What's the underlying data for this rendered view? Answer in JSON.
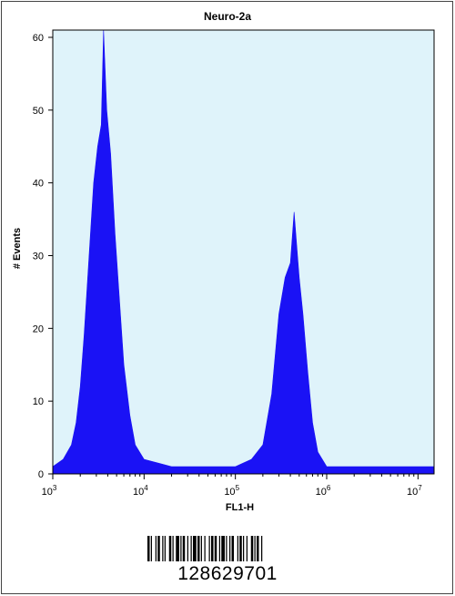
{
  "chart_data": {
    "type": "histogram",
    "title": "Neuro-2a",
    "xlabel": "FL1-H",
    "ylabel": "# Events",
    "x_scale": "log",
    "xlim": [
      1000,
      15000000
    ],
    "ylim": [
      0,
      61
    ],
    "x_ticks": [
      {
        "base": "10",
        "exp": "3",
        "value": 1000
      },
      {
        "base": "10",
        "exp": "4",
        "value": 10000
      },
      {
        "base": "10",
        "exp": "5",
        "value": 100000
      },
      {
        "base": "10",
        "exp": "6",
        "value": 1000000
      },
      {
        "base": "10",
        "exp": "7",
        "value": 10000000
      }
    ],
    "y_ticks": [
      "0",
      "10",
      "20",
      "30",
      "40",
      "50",
      "60"
    ],
    "fill_color": "#1a12f5",
    "background_color": "#dff3fa",
    "grid": false,
    "series": [
      {
        "points": [
          {
            "x": 1000,
            "y": 1
          },
          {
            "x": 1300,
            "y": 2
          },
          {
            "x": 1600,
            "y": 4
          },
          {
            "x": 1800,
            "y": 7
          },
          {
            "x": 2000,
            "y": 12
          },
          {
            "x": 2200,
            "y": 19
          },
          {
            "x": 2500,
            "y": 30
          },
          {
            "x": 2800,
            "y": 40
          },
          {
            "x": 3100,
            "y": 45
          },
          {
            "x": 3400,
            "y": 48
          },
          {
            "x": 3600,
            "y": 61
          },
          {
            "x": 3900,
            "y": 50
          },
          {
            "x": 4300,
            "y": 44
          },
          {
            "x": 4800,
            "y": 33
          },
          {
            "x": 5300,
            "y": 25
          },
          {
            "x": 6000,
            "y": 15
          },
          {
            "x": 7000,
            "y": 8
          },
          {
            "x": 8000,
            "y": 4
          },
          {
            "x": 10000,
            "y": 2
          },
          {
            "x": 20000,
            "y": 1
          },
          {
            "x": 50000,
            "y": 1
          },
          {
            "x": 100000,
            "y": 1
          },
          {
            "x": 150000,
            "y": 2
          },
          {
            "x": 200000,
            "y": 4
          },
          {
            "x": 250000,
            "y": 11
          },
          {
            "x": 300000,
            "y": 22
          },
          {
            "x": 350000,
            "y": 27
          },
          {
            "x": 400000,
            "y": 29
          },
          {
            "x": 440000,
            "y": 36
          },
          {
            "x": 500000,
            "y": 27
          },
          {
            "x": 550000,
            "y": 22
          },
          {
            "x": 620000,
            "y": 14
          },
          {
            "x": 700000,
            "y": 7
          },
          {
            "x": 800000,
            "y": 3
          },
          {
            "x": 1000000,
            "y": 1
          },
          {
            "x": 15000000,
            "y": 1
          }
        ]
      }
    ]
  },
  "barcode": {
    "number": "128629701"
  }
}
